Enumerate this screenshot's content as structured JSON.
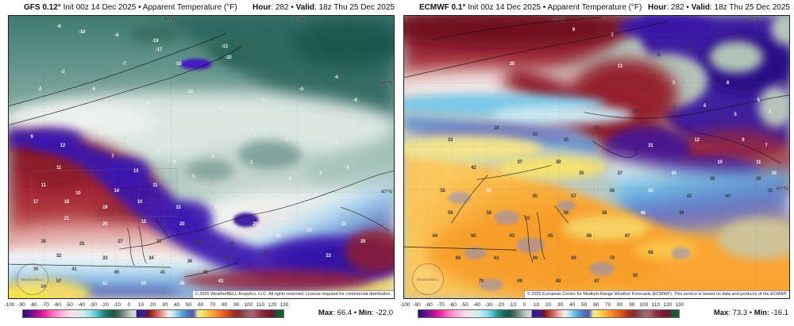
{
  "watermark": "WeatherBELL",
  "colorbar": {
    "ticks": [
      "-100",
      "-90",
      "-80",
      "-70",
      "-60",
      "-50",
      "-40",
      "-30",
      "-20",
      "-10",
      "0",
      "10",
      "20",
      "30",
      "40",
      "50",
      "60",
      "70",
      "80",
      "90",
      "100",
      "110",
      "120",
      "130"
    ],
    "stops": [
      {
        "p": 0,
        "c": "#241168"
      },
      {
        "p": 2.2,
        "c": "#57128e"
      },
      {
        "p": 4.3,
        "c": "#8e1390"
      },
      {
        "p": 6.5,
        "c": "#c41691"
      },
      {
        "p": 8.7,
        "c": "#ee2fa4"
      },
      {
        "p": 10.9,
        "c": "#fa64bc"
      },
      {
        "p": 13,
        "c": "#fb8fcb"
      },
      {
        "p": 15.2,
        "c": "#fcb5da"
      },
      {
        "p": 17.4,
        "c": "#fdd3e7"
      },
      {
        "p": 19.6,
        "c": "#f3e2ea"
      },
      {
        "p": 21.7,
        "c": "#dfe8e8"
      },
      {
        "p": 23.9,
        "c": "#c1ecee"
      },
      {
        "p": 26.1,
        "c": "#8fdfe8"
      },
      {
        "p": 28.3,
        "c": "#52c3cf"
      },
      {
        "p": 30.4,
        "c": "#2a958f"
      },
      {
        "p": 32.6,
        "c": "#1d6b5f"
      },
      {
        "p": 34.8,
        "c": "#1f574c"
      },
      {
        "p": 37,
        "c": "#4d6f63"
      },
      {
        "p": 39.1,
        "c": "#8a9c92"
      },
      {
        "p": 41.3,
        "c": "#c2cdc5"
      },
      {
        "p": 43.3,
        "c": "#d8ded9"
      },
      {
        "p": 43.7,
        "c": "#2c1294"
      },
      {
        "p": 45.7,
        "c": "#44208f"
      },
      {
        "p": 47.2,
        "c": "#4a1a7e"
      },
      {
        "p": 48.1,
        "c": "#7a1220"
      },
      {
        "p": 50,
        "c": "#b03a30"
      },
      {
        "p": 52.2,
        "c": "#d4766c"
      },
      {
        "p": 54.3,
        "c": "#edb9b3"
      },
      {
        "p": 55.7,
        "c": "#f6e3e0"
      },
      {
        "p": 56.5,
        "c": "#e8f0f2"
      },
      {
        "p": 57.8,
        "c": "#bfe4f0"
      },
      {
        "p": 58.7,
        "c": "#9cd4ec"
      },
      {
        "p": 60.9,
        "c": "#5ba8db"
      },
      {
        "p": 63,
        "c": "#4f7fc9"
      },
      {
        "p": 65.2,
        "c": "#5a5aa8"
      },
      {
        "p": 66.1,
        "c": "#8a84b8"
      },
      {
        "p": 67,
        "c": "#e8e39a"
      },
      {
        "p": 68.3,
        "c": "#f7e67a"
      },
      {
        "p": 69.6,
        "c": "#fdd74f"
      },
      {
        "p": 71.7,
        "c": "#fdb541"
      },
      {
        "p": 73.9,
        "c": "#f99032"
      },
      {
        "p": 76.1,
        "c": "#ef6c23"
      },
      {
        "p": 78.3,
        "c": "#d84f1f"
      },
      {
        "p": 80.4,
        "c": "#a93226"
      },
      {
        "p": 82.6,
        "c": "#8c2a33"
      },
      {
        "p": 84.8,
        "c": "#8a4a52"
      },
      {
        "p": 87,
        "c": "#9b6b74"
      },
      {
        "p": 89.1,
        "c": "#a55a66"
      },
      {
        "p": 91.3,
        "c": "#8f2f3f"
      },
      {
        "p": 93.5,
        "c": "#7c1f33"
      },
      {
        "p": 95.7,
        "c": "#6a1430"
      },
      {
        "p": 97.8,
        "c": "#20542e"
      },
      {
        "p": 100,
        "c": "#10682f"
      }
    ],
    "station_text_light": "#f2f2f2",
    "station_text_dark": "#3b3b3b"
  },
  "panels": [
    {
      "model_bold": "GFS 0.12°",
      "model_rest": " Init 00z 14 Dec 2025 • Apparent Temperature (°F)",
      "hour_label": "Hour",
      "hour_rest": ": 282 • ",
      "valid_label": "Valid",
      "valid_rest": ": 18z Thu 25 Dec 2025",
      "copyright": "© 2025 WeatherBELL Analytics, LLC. All rights reserved. License required for commercial distribution.",
      "max_label": "Max",
      "max_rest": ": 66.4 • ",
      "min_label": "Min",
      "min_rest": ": -22.0",
      "lon_labels": [
        {
          "t": "80°W",
          "x": 42
        },
        {
          "t": "75°W",
          "x": 75
        }
      ],
      "lat_labels": [
        {
          "t": "45°N",
          "y": 23.8
        },
        {
          "t": "40°N",
          "y": 62.4
        }
      ],
      "stations": [
        [
          13,
          4,
          "-9",
          "w"
        ],
        [
          19,
          6,
          "-10",
          "w"
        ],
        [
          28,
          7,
          "-6",
          "w"
        ],
        [
          38,
          9,
          "-19",
          "w"
        ],
        [
          39,
          12,
          "-17",
          "w"
        ],
        [
          56,
          11,
          "-13",
          "w"
        ],
        [
          57,
          15,
          "-10",
          "w"
        ],
        [
          44,
          17,
          "-10",
          "w"
        ],
        [
          30,
          17,
          "-7",
          "w"
        ],
        [
          14,
          20,
          "-3",
          "w"
        ],
        [
          8,
          26,
          "-2",
          "w"
        ],
        [
          22,
          26,
          "-5",
          "w"
        ],
        [
          47,
          27,
          "-12",
          "w"
        ],
        [
          36,
          31,
          "-11",
          "w"
        ],
        [
          55,
          33,
          "-2",
          "w"
        ],
        [
          66,
          30,
          "-7",
          "w"
        ],
        [
          76,
          26,
          "-5",
          "w"
        ],
        [
          85,
          22,
          "-4",
          "w"
        ],
        [
          90,
          30,
          "-6",
          "w"
        ],
        [
          63,
          40,
          "-1",
          "w"
        ],
        [
          38,
          38,
          "-10",
          "w"
        ],
        [
          18,
          33,
          "-5",
          "w"
        ],
        [
          72,
          44,
          "-2",
          "w"
        ],
        [
          85,
          45,
          "-8",
          "w"
        ],
        [
          6,
          43,
          "9",
          "w"
        ],
        [
          14,
          46,
          "12",
          "w"
        ],
        [
          24,
          42,
          "3",
          "w"
        ],
        [
          31,
          45,
          "6",
          "w"
        ],
        [
          39,
          48,
          "4",
          "w"
        ],
        [
          27,
          50,
          "7",
          "w"
        ],
        [
          13,
          54,
          "11",
          "w"
        ],
        [
          33,
          55,
          "13",
          "w"
        ],
        [
          43,
          52,
          "6",
          "w"
        ],
        [
          53,
          50,
          "3",
          "w"
        ],
        [
          63,
          52,
          "2",
          "w"
        ],
        [
          48,
          57,
          "5",
          "w"
        ],
        [
          38,
          60,
          "11",
          "w"
        ],
        [
          28,
          62,
          "14",
          "w"
        ],
        [
          18,
          63,
          "10",
          "w"
        ],
        [
          9,
          60,
          "11",
          "w"
        ],
        [
          73,
          58,
          "3",
          "w"
        ],
        [
          81,
          56,
          "2",
          "w"
        ],
        [
          88,
          54,
          "5",
          "w"
        ],
        [
          7,
          66,
          "17",
          "w"
        ],
        [
          15,
          66,
          "18",
          "w"
        ],
        [
          25,
          68,
          "19",
          "w"
        ],
        [
          34,
          66,
          "10",
          "w"
        ],
        [
          44,
          68,
          "13",
          "w"
        ],
        [
          54,
          68,
          "15",
          "w"
        ],
        [
          63,
          66,
          "11",
          "w"
        ],
        [
          15,
          72,
          "21",
          "w"
        ],
        [
          25,
          74,
          "20",
          "w"
        ],
        [
          35,
          73,
          "12",
          "w"
        ],
        [
          45,
          74,
          "20",
          "w"
        ],
        [
          55,
          73,
          "17",
          "w"
        ],
        [
          64,
          74,
          "20",
          "w"
        ],
        [
          71,
          72,
          "21",
          "w"
        ],
        [
          70,
          78,
          "19",
          "w"
        ],
        [
          9,
          80,
          "30",
          "d"
        ],
        [
          19,
          81,
          "25",
          "d"
        ],
        [
          29,
          80,
          "27",
          "d"
        ],
        [
          39,
          80,
          "31",
          "d"
        ],
        [
          49,
          80,
          "28",
          "d"
        ],
        [
          58,
          81,
          "26",
          "d"
        ],
        [
          13,
          85,
          "32",
          "d"
        ],
        [
          25,
          86,
          "33",
          "d"
        ],
        [
          37,
          86,
          "34",
          "d"
        ],
        [
          47,
          87,
          "36",
          "d"
        ],
        [
          57,
          86,
          "30",
          "d"
        ],
        [
          67,
          84,
          "27",
          "d"
        ],
        [
          7,
          90,
          "39",
          "d"
        ],
        [
          17,
          90,
          "41",
          "d"
        ],
        [
          28,
          91,
          "45",
          "d"
        ],
        [
          40,
          91,
          "41",
          "d"
        ],
        [
          51,
          91,
          "36",
          "d"
        ],
        [
          25,
          95,
          "51",
          "w"
        ],
        [
          35,
          95,
          "50",
          "w"
        ],
        [
          45,
          95,
          "45",
          "w"
        ],
        [
          55,
          94,
          "43",
          "w"
        ],
        [
          13,
          94,
          "57",
          "d"
        ],
        [
          9,
          96,
          "54",
          "d"
        ],
        [
          78,
          76,
          "19",
          "w"
        ],
        [
          87,
          74,
          "21",
          "w"
        ],
        [
          92,
          80,
          "20",
          "w"
        ],
        [
          83,
          85,
          "23",
          "w"
        ],
        [
          93,
          88,
          "27",
          "d"
        ]
      ]
    },
    {
      "model_bold": "ECMWF 0.1°",
      "model_rest": " Init 00z 14 Dec 2025 • Apparent Temperature (°F)",
      "hour_label": "Hour",
      "hour_rest": ": 282 • ",
      "valid_label": "Valid",
      "valid_rest": ": 18z Thu 25 Dec 2025",
      "copyright": "© 2025 European Centre for Medium-Range Weather Forecasts (ECMWF). This service is based on data and products of the ECMWF",
      "max_label": "Max",
      "max_rest": ": 73.3 • ",
      "min_label": "Min",
      "min_rest": ": -16.1",
      "lon_labels": [
        {
          "t": "80°W",
          "x": 40
        },
        {
          "t": "75°W",
          "x": 91
        }
      ],
      "lat_labels": [
        {
          "t": "45°N",
          "y": 23.8
        },
        {
          "t": "40°N",
          "y": 61.3
        }
      ],
      "stations": [
        [
          44,
          5,
          "9",
          "w"
        ],
        [
          54,
          7,
          "7",
          "w"
        ],
        [
          28,
          17,
          "20",
          "w"
        ],
        [
          56,
          18,
          "13",
          "w"
        ],
        [
          70,
          24,
          "3",
          "w"
        ],
        [
          84,
          24,
          "8",
          "w"
        ],
        [
          92,
          30,
          "5",
          "w"
        ],
        [
          78,
          32,
          "4",
          "w"
        ],
        [
          86,
          35,
          "5",
          "w"
        ],
        [
          95,
          34,
          "2",
          "w"
        ],
        [
          66,
          14,
          "-5",
          "d"
        ],
        [
          74,
          12,
          "-6",
          "d"
        ],
        [
          62,
          26,
          "-2",
          "d"
        ],
        [
          70,
          33,
          "-7",
          "d"
        ],
        [
          60,
          34,
          "23",
          "d"
        ],
        [
          50,
          40,
          "22",
          "d"
        ],
        [
          34,
          42,
          "33",
          "d"
        ],
        [
          42,
          44,
          "30",
          "d"
        ],
        [
          24,
          40,
          "28",
          "d"
        ],
        [
          12,
          44,
          "33",
          "d"
        ],
        [
          55,
          46,
          "29",
          "d"
        ],
        [
          64,
          46,
          "31",
          "w"
        ],
        [
          76,
          44,
          "12",
          "w"
        ],
        [
          88,
          44,
          "9",
          "w"
        ],
        [
          94,
          46,
          "7",
          "w"
        ],
        [
          82,
          52,
          "10",
          "w"
        ],
        [
          92,
          52,
          "11",
          "w"
        ],
        [
          96,
          56,
          "16",
          "w"
        ],
        [
          30,
          52,
          "37",
          "d"
        ],
        [
          40,
          52,
          "39",
          "d"
        ],
        [
          18,
          54,
          "42",
          "d"
        ],
        [
          46,
          56,
          "35",
          "d"
        ],
        [
          56,
          56,
          "37",
          "d"
        ],
        [
          70,
          56,
          "40",
          "w"
        ],
        [
          80,
          58,
          "38",
          "d"
        ],
        [
          92,
          58,
          "30",
          "d"
        ],
        [
          95,
          62,
          "32",
          "d"
        ],
        [
          10,
          62,
          "55",
          "d"
        ],
        [
          22,
          62,
          "51",
          "w"
        ],
        [
          34,
          64,
          "55",
          "d"
        ],
        [
          44,
          64,
          "57",
          "d"
        ],
        [
          54,
          62,
          "56",
          "d"
        ],
        [
          64,
          62,
          "50",
          "w"
        ],
        [
          74,
          64,
          "42",
          "d"
        ],
        [
          84,
          64,
          "40",
          "d"
        ],
        [
          12,
          70,
          "59",
          "d"
        ],
        [
          22,
          70,
          "58",
          "d"
        ],
        [
          32,
          72,
          "55",
          "d"
        ],
        [
          42,
          70,
          "56",
          "d"
        ],
        [
          52,
          70,
          "58",
          "d"
        ],
        [
          62,
          70,
          "48",
          "w"
        ],
        [
          72,
          70,
          "39",
          "d"
        ],
        [
          8,
          78,
          "64",
          "d"
        ],
        [
          18,
          78,
          "60",
          "d"
        ],
        [
          28,
          78,
          "63",
          "d"
        ],
        [
          38,
          78,
          "65",
          "d"
        ],
        [
          48,
          78,
          "66",
          "d"
        ],
        [
          58,
          78,
          "67",
          "d"
        ],
        [
          14,
          86,
          "66",
          "d"
        ],
        [
          24,
          86,
          "61",
          "d"
        ],
        [
          34,
          86,
          "69",
          "d"
        ],
        [
          44,
          86,
          "69",
          "d"
        ],
        [
          54,
          86,
          "70",
          "d"
        ],
        [
          64,
          84,
          "68",
          "d"
        ],
        [
          20,
          94,
          "70",
          "d"
        ],
        [
          30,
          94,
          "69",
          "d"
        ],
        [
          40,
          94,
          "68",
          "d"
        ],
        [
          50,
          94,
          "67",
          "d"
        ],
        [
          60,
          92,
          "62",
          "d"
        ]
      ]
    }
  ]
}
